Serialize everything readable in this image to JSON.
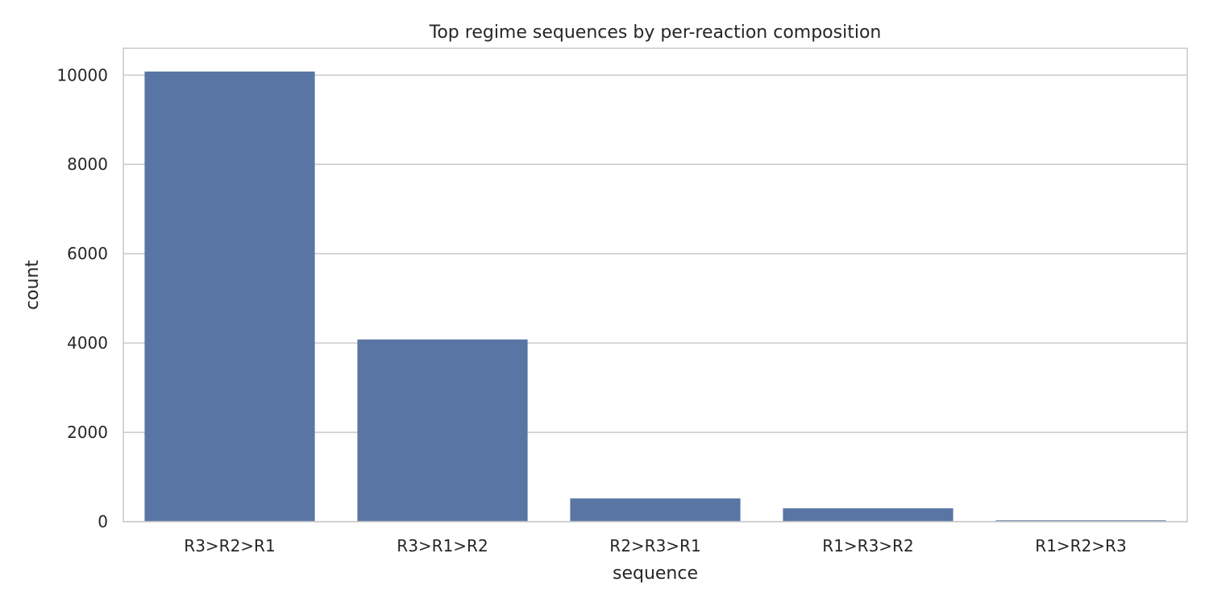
{
  "chart_data": {
    "type": "bar",
    "title": "Top regime sequences by per-reaction composition",
    "xlabel": "sequence",
    "ylabel": "count",
    "categories": [
      "R3>R2>R1",
      "R3>R1>R2",
      "R2>R3>R1",
      "R1>R3>R2",
      "R1>R2>R3"
    ],
    "values": [
      10080,
      4080,
      520,
      300,
      30
    ],
    "ylim": [
      0,
      10600
    ],
    "yticks": [
      0,
      2000,
      4000,
      6000,
      8000,
      10000
    ],
    "grid": true,
    "bar_color": "#5975a4"
  }
}
